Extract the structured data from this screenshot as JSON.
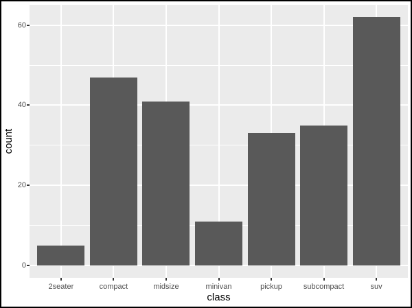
{
  "figure": {
    "background": "#ffffff",
    "border_color": "#000000"
  },
  "chart_data": {
    "type": "bar",
    "title": "",
    "categories": [
      "2seater",
      "compact",
      "midsize",
      "minivan",
      "pickup",
      "subcompact",
      "suv"
    ],
    "values": [
      5,
      47,
      41,
      11,
      33,
      35,
      62
    ],
    "xlabel": "class",
    "ylabel": "count",
    "y_ticks": [
      0,
      20,
      40,
      60
    ],
    "y_tick_labels": [
      "0",
      "20",
      "40",
      "60"
    ],
    "y_minor_ticks": [
      10,
      30,
      50
    ],
    "ylim": [
      0,
      62
    ],
    "legend_position": "none",
    "grid": "horizontal major+minor, vertical major at each category",
    "style": {
      "bar_fill": "#595959",
      "panel_background": "#ebebeb",
      "grid_major_color": "#ffffff",
      "grid_minor_color": "#ffffff",
      "tick_label_color": "#4d4d4d",
      "axis_title_color": "#000000",
      "tick_mark_color": "#333333"
    }
  }
}
